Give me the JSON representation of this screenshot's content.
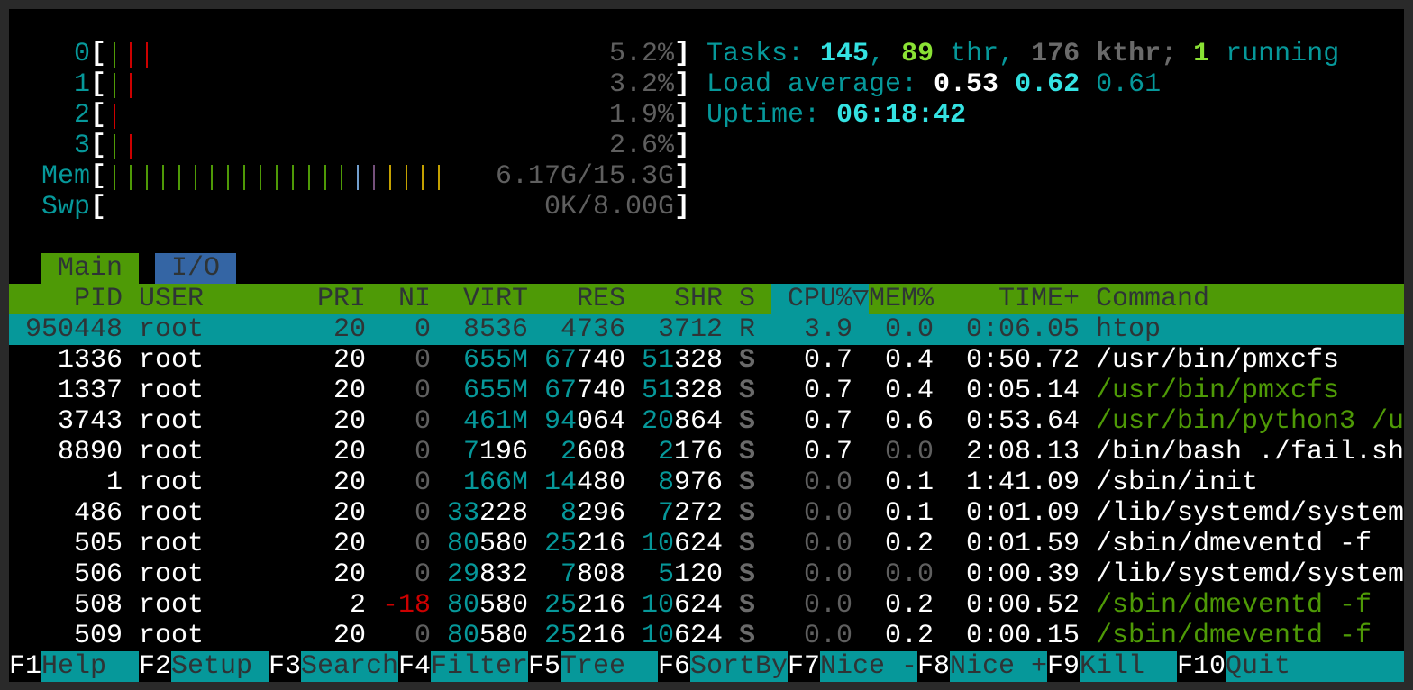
{
  "meters": {
    "cpus": [
      {
        "label": "0",
        "value": "5.2%",
        "bars": [
          "#4e9a06",
          "#cc0000",
          "#cc0000"
        ]
      },
      {
        "label": "1",
        "value": "3.2%",
        "bars": [
          "#4e9a06",
          "#cc0000"
        ]
      },
      {
        "label": "2",
        "value": "1.9%",
        "bars": [
          "#cc0000"
        ]
      },
      {
        "label": "3",
        "value": "2.6%",
        "bars": [
          "#4e9a06",
          "#cc0000"
        ]
      }
    ],
    "mem": {
      "label": "Mem",
      "value": "6.17G/15.3G",
      "bars": [
        "#4e9a06",
        "#4e9a06",
        "#4e9a06",
        "#4e9a06",
        "#4e9a06",
        "#4e9a06",
        "#4e9a06",
        "#4e9a06",
        "#4e9a06",
        "#4e9a06",
        "#4e9a06",
        "#4e9a06",
        "#4e9a06",
        "#4e9a06",
        "#4e9a06",
        "#729fcf",
        "#75507b",
        "#c4a000",
        "#c4a000",
        "#c4a000",
        "#c4a000"
      ]
    },
    "swp": {
      "label": "Swp",
      "value": "0K/8.00G",
      "bars": []
    }
  },
  "summary": {
    "tasks_label": "Tasks: ",
    "tasks": "145",
    "sep1": ", ",
    "threads": "89",
    "thr_label": " thr, ",
    "kthreads": "176",
    "kthr_label": " kthr; ",
    "running": "1",
    "running_label": " running",
    "load_label": "Load average: ",
    "load1": "0.53",
    "load5": "0.62",
    "load15": "0.61",
    "uptime_label": "Uptime: ",
    "uptime": "06:18:42"
  },
  "tabs": [
    {
      "label": "Main",
      "active": true
    },
    {
      "label": "I/O",
      "active": false
    }
  ],
  "columns": {
    "pid": "PID",
    "user": "USER",
    "pri": "PRI",
    "ni": "NI",
    "virt": "VIRT",
    "res": "RES",
    "shr": "SHR",
    "s": "S",
    "cpu": "CPU%▽",
    "mem": "MEM%",
    "time": "TIME+",
    "cmd": "Command"
  },
  "processes": [
    {
      "pid": "950448",
      "user": "root",
      "pri": "20",
      "ni": "0",
      "virt": "8536",
      "res": "4736",
      "shr": "3712",
      "s": "R",
      "cpu": "3.9",
      "mem": "0.0",
      "time": "0:06.05",
      "cmd": "htop",
      "cmd_color": "white",
      "selected": true
    },
    {
      "pid": "1336",
      "user": "root",
      "pri": "20",
      "ni": "0",
      "virt": "655M",
      "res": "67740",
      "shr": "51328",
      "s": "S",
      "cpu": "0.7",
      "mem": "0.4",
      "time": "0:50.72",
      "cmd": "/usr/bin/pmxcfs",
      "cmd_color": "white"
    },
    {
      "pid": "1337",
      "user": "root",
      "pri": "20",
      "ni": "0",
      "virt": "655M",
      "res": "67740",
      "shr": "51328",
      "s": "S",
      "cpu": "0.7",
      "mem": "0.4",
      "time": "0:05.14",
      "cmd": "/usr/bin/pmxcfs",
      "cmd_color": "green"
    },
    {
      "pid": "3743",
      "user": "root",
      "pri": "20",
      "ni": "0",
      "virt": "461M",
      "res": "94064",
      "shr": "20864",
      "s": "S",
      "cpu": "0.7",
      "mem": "0.6",
      "time": "0:53.64",
      "cmd": "/usr/bin/python3 /u",
      "cmd_color": "green"
    },
    {
      "pid": "8890",
      "user": "root",
      "pri": "20",
      "ni": "0",
      "virt": "7196",
      "res": "2608",
      "shr": "2176",
      "s": "S",
      "cpu": "0.7",
      "mem": "0.0",
      "time": "2:08.13",
      "cmd": "/bin/bash ./fail.sh",
      "cmd_color": "white"
    },
    {
      "pid": "1",
      "user": "root",
      "pri": "20",
      "ni": "0",
      "virt": "166M",
      "res": "14480",
      "shr": "8976",
      "s": "S",
      "cpu": "0.0",
      "mem": "0.1",
      "time": "1:41.09",
      "cmd": "/sbin/init",
      "cmd_color": "white"
    },
    {
      "pid": "486",
      "user": "root",
      "pri": "20",
      "ni": "0",
      "virt": "33228",
      "res": "8296",
      "shr": "7272",
      "s": "S",
      "cpu": "0.0",
      "mem": "0.1",
      "time": "0:01.09",
      "cmd": "/lib/systemd/system",
      "cmd_color": "white"
    },
    {
      "pid": "505",
      "user": "root",
      "pri": "20",
      "ni": "0",
      "virt": "80580",
      "res": "25216",
      "shr": "10624",
      "s": "S",
      "cpu": "0.0",
      "mem": "0.2",
      "time": "0:01.59",
      "cmd": "/sbin/dmeventd -f",
      "cmd_color": "white"
    },
    {
      "pid": "506",
      "user": "root",
      "pri": "20",
      "ni": "0",
      "virt": "29832",
      "res": "7808",
      "shr": "5120",
      "s": "S",
      "cpu": "0.0",
      "mem": "0.0",
      "time": "0:00.39",
      "cmd": "/lib/systemd/system",
      "cmd_color": "white"
    },
    {
      "pid": "508",
      "user": "root",
      "pri": "2",
      "ni": "-18",
      "virt": "80580",
      "res": "25216",
      "shr": "10624",
      "s": "S",
      "cpu": "0.0",
      "mem": "0.2",
      "time": "0:00.52",
      "cmd": "/sbin/dmeventd -f",
      "cmd_color": "green"
    },
    {
      "pid": "509",
      "user": "root",
      "pri": "20",
      "ni": "0",
      "virt": "80580",
      "res": "25216",
      "shr": "10624",
      "s": "S",
      "cpu": "0.0",
      "mem": "0.2",
      "time": "0:00.15",
      "cmd": "/sbin/dmeventd -f",
      "cmd_color": "green"
    }
  ],
  "function_bar": [
    {
      "key": "F1",
      "label": "Help  "
    },
    {
      "key": "F2",
      "label": "Setup "
    },
    {
      "key": "F3",
      "label": "Search"
    },
    {
      "key": "F4",
      "label": "Filter"
    },
    {
      "key": "F5",
      "label": "Tree  "
    },
    {
      "key": "F6",
      "label": "SortBy"
    },
    {
      "key": "F7",
      "label": "Nice -"
    },
    {
      "key": "F8",
      "label": "Nice +"
    },
    {
      "key": "F9",
      "label": "Kill  "
    },
    {
      "key": "F10",
      "label": "Quit"
    }
  ]
}
